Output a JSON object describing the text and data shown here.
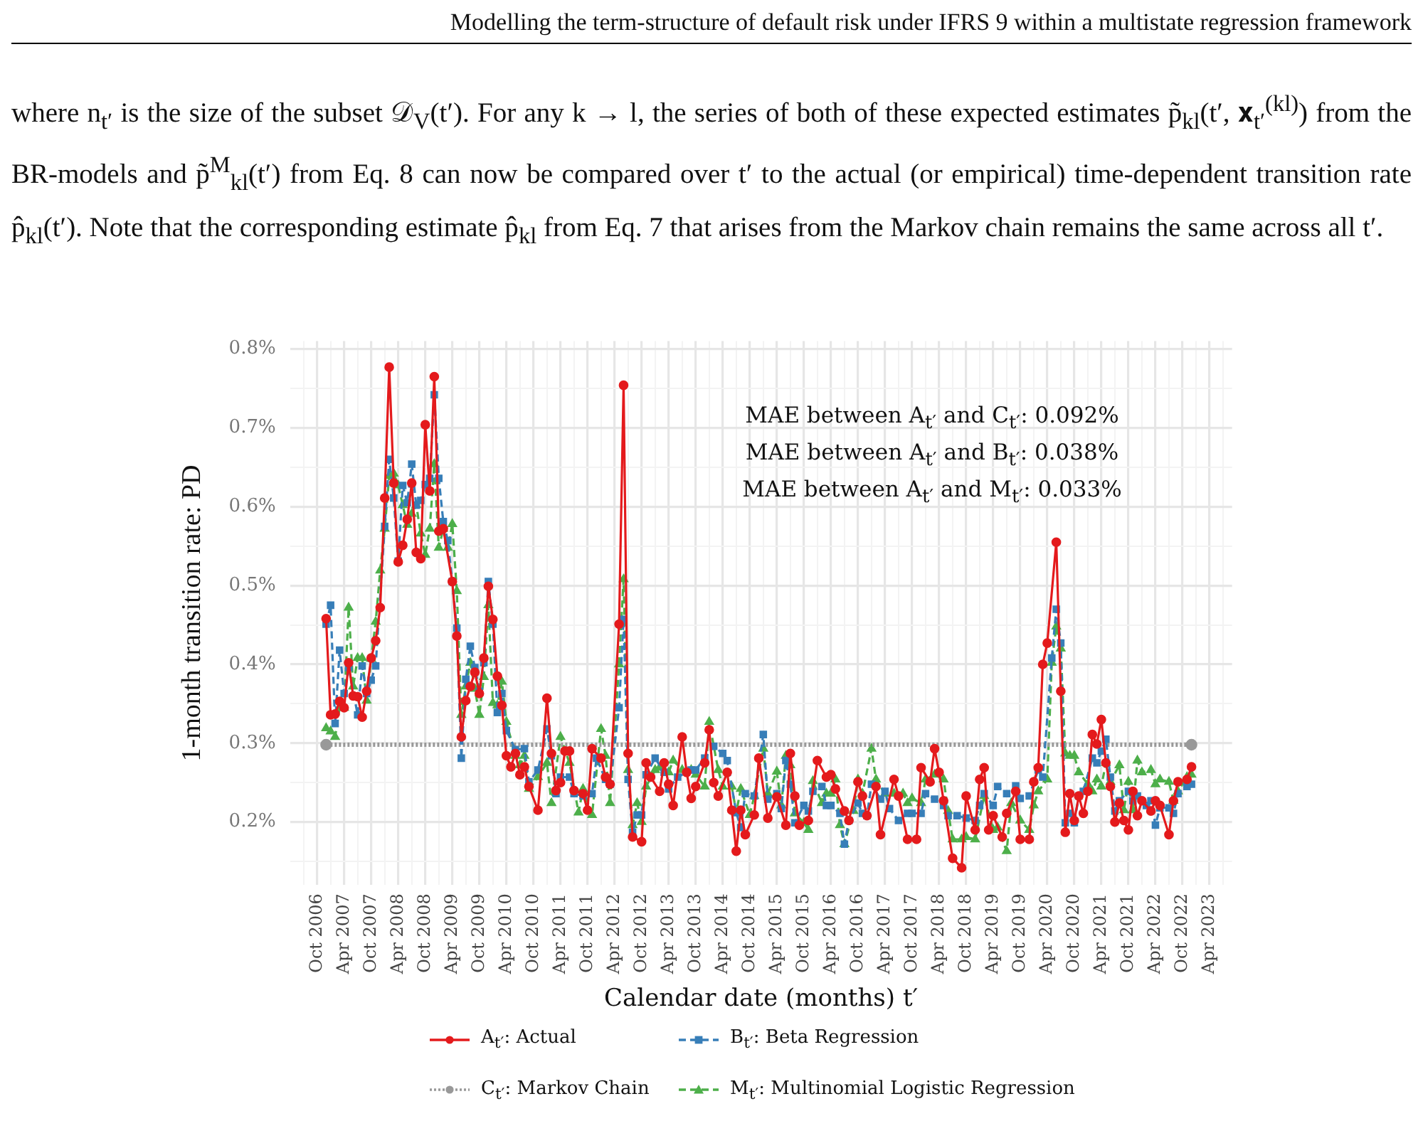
{
  "chart_data": {
    "type": "line",
    "xlabel": "Calendar date (months) t′",
    "ylabel": "1-month transition rate: PD",
    "annotations": [
      "Modelling the term-structure of default risk under IFRS 9 within a multistate regression framework",
      "where n$_{t′}$ is the size of the subset 𝒟$_{V}$(t′). For any k → l, the series of both of these expected estimates p̃$_{kl}$(t′, 𝐱$_{t′}$$^{(kl)}$) from the BR-models and p̃$^{M}$$_{kl}$(t′) from Eq. 8 can now be compared over t′ to the actual (or empirical) time-dependent transition rate p̂$_{kl}$(t′). Note that the corresponding estimate p̂$_{kl}$ from Eq. 7 that arises from the Markov chain remains the same across all t′.",
      "MAE between A$_{t′}$ and C$_{t′}$: 0.092%",
      "MAE between A$_{t′}$ and B$_{t′}$: 0.038%",
      "MAE between A$_{t′}$ and M$_{t′}$: 0.033%"
    ],
    "xlim": [
      "2006-04",
      "2023-09"
    ],
    "xticks": [
      {
        "value": "2006-07",
        "label": null
      },
      {
        "value": "2006-10",
        "label": "Oct 2006"
      },
      {
        "value": "2007-01",
        "label": null
      },
      {
        "value": "2007-04",
        "label": "Apr 2007"
      },
      {
        "value": "2007-07",
        "label": null
      },
      {
        "value": "2007-10",
        "label": "Oct 2007"
      },
      {
        "value": "2008-01",
        "label": null
      },
      {
        "value": "2008-04",
        "label": "Apr 2008"
      },
      {
        "value": "2008-07",
        "label": null
      },
      {
        "value": "2008-10",
        "label": "Oct 2008"
      },
      {
        "value": "2009-01",
        "label": null
      },
      {
        "value": "2009-04",
        "label": "Apr 2009"
      },
      {
        "value": "2009-07",
        "label": null
      },
      {
        "value": "2009-10",
        "label": "Oct 2009"
      },
      {
        "value": "2010-01",
        "label": null
      },
      {
        "value": "2010-04",
        "label": "Apr 2010"
      },
      {
        "value": "2010-07",
        "label": null
      },
      {
        "value": "2010-10",
        "label": "Oct 2010"
      },
      {
        "value": "2011-01",
        "label": null
      },
      {
        "value": "2011-04",
        "label": "Apr 2011"
      },
      {
        "value": "2011-07",
        "label": null
      },
      {
        "value": "2011-10",
        "label": "Oct 2011"
      },
      {
        "value": "2012-01",
        "label": null
      },
      {
        "value": "2012-04",
        "label": "Apr 2012"
      },
      {
        "value": "2012-07",
        "label": null
      },
      {
        "value": "2012-10",
        "label": "Oct 2012"
      },
      {
        "value": "2013-01",
        "label": null
      },
      {
        "value": "2013-04",
        "label": "Apr 2013"
      },
      {
        "value": "2013-07",
        "label": null
      },
      {
        "value": "2013-10",
        "label": "Oct 2013"
      },
      {
        "value": "2014-01",
        "label": null
      },
      {
        "value": "2014-04",
        "label": "Apr 2014"
      },
      {
        "value": "2014-07",
        "label": null
      },
      {
        "value": "2014-10",
        "label": "Oct 2014"
      },
      {
        "value": "2015-01",
        "label": null
      },
      {
        "value": "2015-04",
        "label": "Apr 2015"
      },
      {
        "value": "2015-07",
        "label": null
      },
      {
        "value": "2015-10",
        "label": "Oct 2015"
      },
      {
        "value": "2016-01",
        "label": null
      },
      {
        "value": "2016-04",
        "label": "Apr 2016"
      },
      {
        "value": "2016-07",
        "label": null
      },
      {
        "value": "2016-10",
        "label": "Oct 2016"
      },
      {
        "value": "2017-01",
        "label": null
      },
      {
        "value": "2017-04",
        "label": "Apr 2017"
      },
      {
        "value": "2017-07",
        "label": null
      },
      {
        "value": "2017-10",
        "label": "Oct 2017"
      },
      {
        "value": "2018-01",
        "label": null
      },
      {
        "value": "2018-04",
        "label": "Apr 2018"
      },
      {
        "value": "2018-07",
        "label": null
      },
      {
        "value": "2018-10",
        "label": "Oct 2018"
      },
      {
        "value": "2019-01",
        "label": null
      },
      {
        "value": "2019-04",
        "label": "Apr 2019"
      },
      {
        "value": "2019-07",
        "label": null
      },
      {
        "value": "2019-10",
        "label": "Oct 2019"
      },
      {
        "value": "2020-01",
        "label": null
      },
      {
        "value": "2020-04",
        "label": "Apr 2020"
      },
      {
        "value": "2020-07",
        "label": null
      },
      {
        "value": "2020-10",
        "label": "Oct 2020"
      },
      {
        "value": "2021-01",
        "label": null
      },
      {
        "value": "2021-04",
        "label": "Apr 2021"
      },
      {
        "value": "2021-07",
        "label": null
      },
      {
        "value": "2021-10",
        "label": "Oct 2021"
      },
      {
        "value": "2022-01",
        "label": null
      },
      {
        "value": "2022-04",
        "label": "Apr 2022"
      },
      {
        "value": "2022-07",
        "label": null
      },
      {
        "value": "2022-10",
        "label": "Oct 2022"
      },
      {
        "value": "2023-01",
        "label": null
      },
      {
        "value": "2023-04",
        "label": "Apr 2023"
      },
      {
        "value": "2023-07",
        "label": null
      }
    ],
    "ylim": [
      0.12,
      0.81
    ],
    "yticks": [
      {
        "value": 0.15,
        "label": null
      },
      {
        "value": 0.2,
        "label": "0.2%"
      },
      {
        "value": 0.25,
        "label": null
      },
      {
        "value": 0.3,
        "label": "0.3%"
      },
      {
        "value": 0.35,
        "label": null
      },
      {
        "value": 0.4,
        "label": "0.4%"
      },
      {
        "value": 0.45,
        "label": null
      },
      {
        "value": 0.5,
        "label": "0.5%"
      },
      {
        "value": 0.55,
        "label": null
      },
      {
        "value": 0.6,
        "label": "0.6%"
      },
      {
        "value": 0.65,
        "label": null
      },
      {
        "value": 0.7,
        "label": "0.7%"
      },
      {
        "value": 0.75,
        "label": null
      },
      {
        "value": 0.8,
        "label": "0.8%"
      }
    ],
    "grid": true,
    "legend": "bottom",
    "series": [
      {
        "name": "A$_{t′}$: Actual",
        "color": "#e41a1c",
        "line_style": "solid",
        "marker": "circle",
        "x": [
          "2006-12",
          "2007-01",
          "2007-02",
          "2007-03",
          "2007-04",
          "2007-05",
          "2007-06",
          "2007-07",
          "2007-08",
          "2007-09",
          "2007-10",
          "2007-11",
          "2007-12",
          "2008-01",
          "2008-02",
          "2008-03",
          "2008-04",
          "2008-05",
          "2008-06",
          "2008-07",
          "2008-08",
          "2008-09",
          "2008-10",
          "2008-11",
          "2008-12",
          "2009-01",
          "2009-02",
          "2009-04",
          "2009-05",
          "2009-06",
          "2009-07",
          "2009-08",
          "2009-09",
          "2009-10",
          "2009-11",
          "2009-12",
          "2010-01",
          "2010-02",
          "2010-03",
          "2010-04",
          "2010-05",
          "2010-06",
          "2010-07",
          "2010-08",
          "2010-09",
          "2010-11",
          "2011-01",
          "2011-02",
          "2011-03",
          "2011-04",
          "2011-05",
          "2011-06",
          "2011-07",
          "2011-09",
          "2011-10",
          "2011-11",
          "2012-01",
          "2012-02",
          "2012-03",
          "2012-05",
          "2012-06",
          "2012-07",
          "2012-08",
          "2012-10",
          "2012-11",
          "2012-12",
          "2013-02",
          "2013-03",
          "2013-04",
          "2013-05",
          "2013-07",
          "2013-08",
          "2013-09",
          "2013-10",
          "2013-12",
          "2014-01",
          "2014-02",
          "2014-03",
          "2014-05",
          "2014-06",
          "2014-07",
          "2014-08",
          "2014-09",
          "2014-11",
          "2014-12",
          "2015-02",
          "2015-04",
          "2015-06",
          "2015-07",
          "2015-08",
          "2015-09",
          "2015-11",
          "2016-01",
          "2016-03",
          "2016-04",
          "2016-05",
          "2016-07",
          "2016-08",
          "2016-10",
          "2016-11",
          "2016-12",
          "2017-02",
          "2017-03",
          "2017-06",
          "2017-07",
          "2017-09",
          "2017-11",
          "2017-12",
          "2018-02",
          "2018-03",
          "2018-04",
          "2018-05",
          "2018-07",
          "2018-09",
          "2018-10",
          "2018-12",
          "2019-01",
          "2019-02",
          "2019-03",
          "2019-04",
          "2019-06",
          "2019-07",
          "2019-09",
          "2019-10",
          "2019-12",
          "2020-01",
          "2020-02",
          "2020-03",
          "2020-04",
          "2020-06",
          "2020-07",
          "2020-08",
          "2020-09",
          "2020-10",
          "2020-11",
          "2020-12",
          "2021-01",
          "2021-02",
          "2021-03",
          "2021-04",
          "2021-05",
          "2021-06",
          "2021-07",
          "2021-08",
          "2021-09",
          "2021-10",
          "2021-11",
          "2021-12",
          "2022-01",
          "2022-03",
          "2022-04",
          "2022-05",
          "2022-07",
          "2022-08",
          "2022-09",
          "2022-11",
          "2022-12"
        ],
        "values": [
          0.458,
          0.336,
          0.337,
          0.353,
          0.345,
          0.402,
          0.36,
          0.359,
          0.333,
          0.366,
          0.408,
          0.43,
          0.472,
          0.611,
          0.777,
          0.63,
          0.53,
          0.551,
          0.584,
          0.63,
          0.542,
          0.534,
          0.704,
          0.62,
          0.765,
          0.569,
          0.572,
          0.505,
          0.436,
          0.308,
          0.354,
          0.372,
          0.39,
          0.363,
          0.408,
          0.499,
          0.457,
          0.385,
          0.348,
          0.284,
          0.27,
          0.287,
          0.26,
          0.27,
          0.245,
          0.215,
          0.357,
          0.287,
          0.24,
          0.25,
          0.29,
          0.29,
          0.24,
          0.236,
          0.215,
          0.293,
          0.281,
          0.257,
          0.248,
          0.451,
          0.754,
          0.287,
          0.181,
          0.175,
          0.275,
          0.257,
          0.239,
          0.275,
          0.248,
          0.221,
          0.308,
          0.263,
          0.23,
          0.245,
          0.275,
          0.317,
          0.25,
          0.233,
          0.263,
          0.215,
          0.163,
          0.215,
          0.184,
          0.209,
          0.281,
          0.205,
          0.232,
          0.196,
          0.287,
          0.233,
          0.196,
          0.202,
          0.278,
          0.257,
          0.26,
          0.242,
          0.214,
          0.202,
          0.251,
          0.233,
          0.208,
          0.245,
          0.184,
          0.254,
          0.233,
          0.178,
          0.178,
          0.269,
          0.251,
          0.293,
          0.263,
          0.227,
          0.154,
          0.142,
          0.233,
          0.19,
          0.254,
          0.269,
          0.19,
          0.208,
          0.181,
          0.211,
          0.239,
          0.178,
          0.178,
          0.251,
          0.269,
          0.4,
          0.427,
          0.555,
          0.366,
          0.187,
          0.236,
          0.202,
          0.233,
          0.211,
          0.239,
          0.311,
          0.299,
          0.33,
          0.275,
          0.245,
          0.2,
          0.224,
          0.202,
          0.19,
          0.239,
          0.208,
          0.227,
          0.214,
          0.227,
          0.221,
          0.184,
          0.227,
          0.251,
          0.254,
          0.27
        ]
      },
      {
        "name": "B$_{t′}$: Beta Regression",
        "color": "#377eb8",
        "line_style": "dashed",
        "marker": "square",
        "x": [
          "2006-12",
          "2007-01",
          "2007-02",
          "2007-03",
          "2007-04",
          "2007-05",
          "2007-07",
          "2007-08",
          "2007-09",
          "2007-10",
          "2007-11",
          "2008-01",
          "2008-02",
          "2008-03",
          "2008-04",
          "2008-05",
          "2008-06",
          "2008-07",
          "2008-08",
          "2008-09",
          "2008-10",
          "2008-11",
          "2008-12",
          "2009-01",
          "2009-02",
          "2009-03",
          "2009-04",
          "2009-05",
          "2009-06",
          "2009-07",
          "2009-08",
          "2009-09",
          "2009-10",
          "2009-11",
          "2009-12",
          "2010-01",
          "2010-02",
          "2010-03",
          "2010-04",
          "2010-06",
          "2010-08",
          "2010-09",
          "2010-11",
          "2011-01",
          "2011-02",
          "2011-03",
          "2011-04",
          "2011-06",
          "2011-07",
          "2011-09",
          "2011-11",
          "2011-12",
          "2012-02",
          "2012-03",
          "2012-05",
          "2012-06",
          "2012-07",
          "2012-08",
          "2012-09",
          "2012-10",
          "2012-11",
          "2013-01",
          "2013-03",
          "2013-04",
          "2013-06",
          "2013-09",
          "2013-10",
          "2013-12",
          "2014-02",
          "2014-04",
          "2014-05",
          "2014-07",
          "2014-08",
          "2014-09",
          "2014-11",
          "2015-01",
          "2015-02",
          "2015-04",
          "2015-05",
          "2015-06",
          "2015-07",
          "2015-08",
          "2015-10",
          "2015-11",
          "2015-12",
          "2016-02",
          "2016-03",
          "2016-04",
          "2016-06",
          "2016-07",
          "2016-08",
          "2016-10",
          "2016-11",
          "2016-12",
          "2017-01",
          "2017-03",
          "2017-04",
          "2017-05",
          "2017-07",
          "2017-09",
          "2017-10",
          "2017-12",
          "2018-01",
          "2018-03",
          "2018-05",
          "2018-06",
          "2018-08",
          "2018-10",
          "2018-12",
          "2019-01",
          "2019-02",
          "2019-04",
          "2019-05",
          "2019-07",
          "2019-09",
          "2019-10",
          "2019-12",
          "2020-02",
          "2020-03",
          "2020-05",
          "2020-06",
          "2020-07",
          "2020-08",
          "2020-09",
          "2020-10",
          "2020-11",
          "2020-12",
          "2021-02",
          "2021-03",
          "2021-04",
          "2021-05",
          "2021-06",
          "2021-07",
          "2021-08",
          "2021-10",
          "2021-11",
          "2021-12",
          "2022-02",
          "2022-03",
          "2022-04",
          "2022-05",
          "2022-07",
          "2022-08",
          "2022-09",
          "2022-11",
          "2022-12"
        ],
        "values": [
          0.451,
          0.475,
          0.325,
          0.418,
          0.363,
          0.396,
          0.336,
          0.398,
          0.363,
          0.38,
          0.398,
          0.575,
          0.66,
          0.611,
          0.531,
          0.627,
          0.605,
          0.654,
          0.602,
          0.608,
          0.628,
          0.636,
          0.742,
          0.636,
          0.581,
          0.557,
          0.505,
          0.446,
          0.281,
          0.381,
          0.423,
          0.396,
          0.366,
          0.402,
          0.505,
          0.451,
          0.339,
          0.363,
          0.316,
          0.292,
          0.293,
          0.251,
          0.266,
          0.318,
          0.284,
          0.236,
          0.257,
          0.257,
          0.236,
          0.233,
          0.236,
          0.281,
          0.254,
          0.248,
          0.345,
          0.457,
          0.254,
          0.187,
          0.209,
          0.209,
          0.26,
          0.281,
          0.263,
          0.242,
          0.257,
          0.266,
          0.266,
          0.281,
          0.296,
          0.287,
          0.278,
          0.212,
          0.193,
          0.236,
          0.233,
          0.311,
          0.229,
          0.236,
          0.217,
          0.278,
          0.248,
          0.199,
          0.221,
          0.214,
          0.239,
          0.245,
          0.221,
          0.221,
          0.211,
          0.172,
          0.202,
          0.224,
          0.211,
          0.208,
          0.248,
          0.229,
          0.239,
          0.217,
          0.202,
          0.211,
          0.211,
          0.211,
          0.236,
          0.229,
          0.221,
          0.208,
          0.208,
          0.205,
          0.202,
          0.221,
          0.236,
          0.221,
          0.245,
          0.236,
          0.246,
          0.23,
          0.233,
          0.266,
          0.257,
          0.408,
          0.47,
          0.427,
          0.199,
          0.211,
          0.199,
          0.233,
          0.239,
          0.281,
          0.275,
          0.29,
          0.305,
          0.257,
          0.214,
          0.227,
          0.239,
          0.227,
          0.233,
          0.221,
          0.227,
          0.196,
          0.218,
          0.218,
          0.211,
          0.236,
          0.245,
          0.248
        ]
      },
      {
        "name": "C$_{t′}$: Markov Chain",
        "color": "#999999",
        "line_style": "dotted",
        "marker": "circle",
        "x": [
          "2006-12",
          "2022-12"
        ],
        "values": [
          0.298,
          0.298
        ]
      },
      {
        "name": "M$_{t′}$: Multinomial Logistic Regression",
        "color": "#4daf4a",
        "line_style": "dashed",
        "marker": "triangle",
        "x": [
          "2006-12",
          "2007-01",
          "2007-02",
          "2007-03",
          "2007-04",
          "2007-05",
          "2007-06",
          "2007-07",
          "2007-08",
          "2007-09",
          "2007-10",
          "2007-11",
          "2007-12",
          "2008-01",
          "2008-02",
          "2008-03",
          "2008-04",
          "2008-05",
          "2008-06",
          "2008-07",
          "2008-08",
          "2008-09",
          "2008-10",
          "2008-11",
          "2008-12",
          "2009-01",
          "2009-02",
          "2009-03",
          "2009-04",
          "2009-05",
          "2009-06",
          "2009-07",
          "2009-08",
          "2009-09",
          "2009-10",
          "2009-11",
          "2009-12",
          "2010-01",
          "2010-02",
          "2010-03",
          "2010-04",
          "2010-06",
          "2010-07",
          "2010-08",
          "2010-09",
          "2010-11",
          "2011-01",
          "2011-02",
          "2011-04",
          "2011-06",
          "2011-08",
          "2011-09",
          "2011-11",
          "2012-01",
          "2012-02",
          "2012-03",
          "2012-05",
          "2012-06",
          "2012-07",
          "2012-08",
          "2012-09",
          "2012-10",
          "2012-11",
          "2013-01",
          "2013-02",
          "2013-04",
          "2013-05",
          "2013-07",
          "2013-09",
          "2013-10",
          "2013-12",
          "2014-01",
          "2014-03",
          "2014-04",
          "2014-06",
          "2014-07",
          "2014-08",
          "2014-10",
          "2014-11",
          "2015-01",
          "2015-02",
          "2015-04",
          "2015-05",
          "2015-06",
          "2015-07",
          "2015-08",
          "2015-10",
          "2015-11",
          "2015-12",
          "2016-02",
          "2016-03",
          "2016-04",
          "2016-05",
          "2016-06",
          "2016-07",
          "2016-09",
          "2016-10",
          "2016-11",
          "2017-01",
          "2017-02",
          "2017-04",
          "2017-06",
          "2017-08",
          "2017-09",
          "2017-10",
          "2017-12",
          "2018-01",
          "2018-03",
          "2018-05",
          "2018-06",
          "2018-07",
          "2018-09",
          "2018-10",
          "2018-12",
          "2019-02",
          "2019-04",
          "2019-05",
          "2019-07",
          "2019-08",
          "2019-10",
          "2019-12",
          "2020-01",
          "2020-02",
          "2020-04",
          "2020-05",
          "2020-06",
          "2020-07",
          "2020-08",
          "2020-09",
          "2020-10",
          "2020-11",
          "2021-01",
          "2021-02",
          "2021-03",
          "2021-04",
          "2021-05",
          "2021-06",
          "2021-08",
          "2021-09",
          "2021-10",
          "2021-11",
          "2021-12",
          "2022-01",
          "2022-03",
          "2022-04",
          "2022-05",
          "2022-07",
          "2022-08",
          "2022-09",
          "2022-11",
          "2022-12"
        ],
        "values": [
          0.319,
          0.315,
          0.308,
          0.345,
          0.345,
          0.472,
          0.372,
          0.408,
          0.408,
          0.354,
          0.407,
          0.454,
          0.519,
          0.572,
          0.639,
          0.642,
          0.627,
          0.602,
          0.577,
          0.591,
          0.602,
          0.566,
          0.539,
          0.572,
          0.654,
          0.548,
          0.572,
          0.548,
          0.578,
          0.493,
          0.336,
          0.372,
          0.402,
          0.369,
          0.336,
          0.384,
          0.475,
          0.351,
          0.348,
          0.378,
          0.327,
          0.284,
          0.272,
          0.284,
          0.242,
          0.257,
          0.275,
          0.224,
          0.308,
          0.275,
          0.212,
          0.242,
          0.209,
          0.318,
          0.284,
          0.224,
          0.4,
          0.508,
          0.266,
          0.196,
          0.224,
          0.2,
          0.245,
          0.266,
          0.269,
          0.263,
          0.278,
          0.266,
          0.266,
          0.26,
          0.245,
          0.327,
          0.266,
          0.245,
          0.245,
          0.212,
          0.242,
          0.209,
          0.233,
          0.293,
          0.236,
          0.264,
          0.221,
          0.284,
          0.272,
          0.211,
          0.199,
          0.19,
          0.252,
          0.224,
          0.236,
          0.236,
          0.254,
          0.196,
          0.172,
          0.214,
          0.254,
          0.236,
          0.293,
          0.254,
          0.236,
          0.236,
          0.236,
          0.224,
          0.23,
          0.224,
          0.254,
          0.26,
          0.254,
          0.214,
          0.178,
          0.178,
          0.181,
          0.178,
          0.233,
          0.19,
          0.193,
          0.163,
          0.224,
          0.202,
          0.19,
          0.221,
          0.239,
          0.254,
          0.402,
          0.448,
          0.42,
          0.287,
          0.284,
          0.284,
          0.263,
          0.248,
          0.239,
          0.254,
          0.245,
          0.275,
          0.251,
          0.272,
          0.215,
          0.251,
          0.215,
          0.278,
          0.263,
          0.266,
          0.248,
          0.254,
          0.251,
          0.227,
          0.239,
          0.257,
          0.26
        ]
      }
    ]
  }
}
